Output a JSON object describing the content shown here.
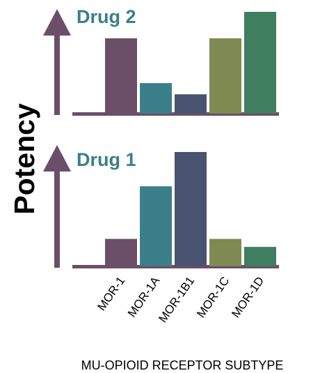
{
  "chart_data": {
    "type": "bar",
    "ylabel": "Potency",
    "xlabel": "MU-OPIOID RECEPTOR SUBTYPE",
    "categories": [
      "MOR-1",
      "MOR-1A",
      "MOR-1B1",
      "MOR-1C",
      "MOR-1D"
    ],
    "colors": [
      "#6b4e68",
      "#3b7f8a",
      "#4a5370",
      "#7f8a52",
      "#3f7e5f"
    ],
    "axis_color": "#6b4e68",
    "title_color": "#3b7f8a",
    "ylim": [
      0,
      100
    ],
    "panels": [
      {
        "title": "Drug 2",
        "values": [
          74,
          30,
          19,
          74,
          100
        ]
      },
      {
        "title": "Drug 1",
        "values": [
          24,
          70,
          100,
          24,
          17
        ]
      }
    ]
  }
}
